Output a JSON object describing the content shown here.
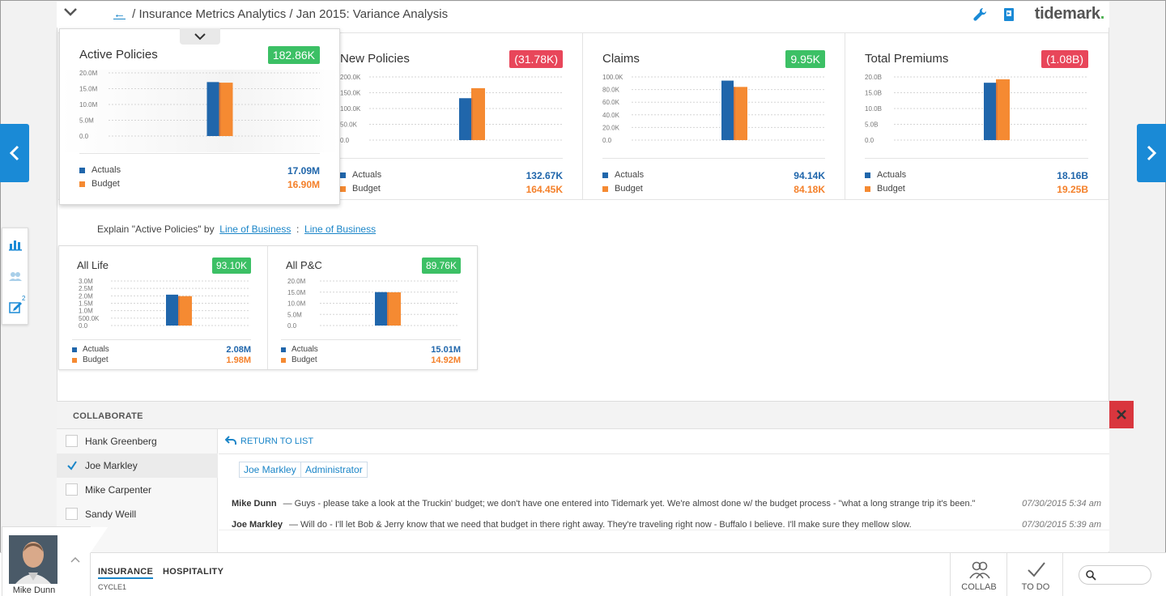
{
  "header": {
    "back_label": "←",
    "breadcrumb": "/ Insurance Metrics Analytics / Jan 2015:  Variance Analysis",
    "brand": "tidemark",
    "brand_dot": "."
  },
  "metric_cards": [
    {
      "title": "Active Policies",
      "variance": "182.86K",
      "variance_status": "positive",
      "ticks": [
        "20.0M",
        "15.0M",
        "10.0M",
        "5.0M",
        "0.0"
      ],
      "actuals_label": "Actuals",
      "actuals_value": "17.09M",
      "budget_label": "Budget",
      "budget_value": "16.90M"
    },
    {
      "title": "New Policies",
      "variance": "(31.78K)",
      "variance_status": "negative",
      "ticks": [
        "200.0K",
        "150.0K",
        "100.0K",
        "50.0K",
        "0.0"
      ],
      "actuals_label": "Actuals",
      "actuals_value": "132.67K",
      "budget_label": "Budget",
      "budget_value": "164.45K"
    },
    {
      "title": "Claims",
      "variance": "9.95K",
      "variance_status": "positive",
      "ticks": [
        "100.0K",
        "80.0K",
        "60.0K",
        "40.0K",
        "20.0K",
        "0.0"
      ],
      "actuals_label": "Actuals",
      "actuals_value": "94.14K",
      "budget_label": "Budget",
      "budget_value": "84.18K"
    },
    {
      "title": "Total Premiums",
      "variance": "(1.08B)",
      "variance_status": "negative",
      "ticks": [
        "20.0B",
        "15.0B",
        "10.0B",
        "5.0B",
        "0.0"
      ],
      "actuals_label": "Actuals",
      "actuals_value": "18.16B",
      "budget_label": "Budget",
      "budget_value": "19.25B"
    }
  ],
  "explain": {
    "prefix": "Explain \"Active Policies\" by",
    "link1": "Line of Business",
    "sep": ":",
    "link2": "Line of Business"
  },
  "sub_cards": [
    {
      "title": "All Life",
      "variance": "93.10K",
      "variance_status": "positive",
      "ticks": [
        "3.0M",
        "2.5M",
        "2.0M",
        "1.5M",
        "1.0M",
        "500.0K",
        "0.0"
      ],
      "actuals_label": "Actuals",
      "actuals_value": "2.08M",
      "budget_label": "Budget",
      "budget_value": "1.98M"
    },
    {
      "title": "All P&C",
      "variance": "89.76K",
      "variance_status": "positive",
      "ticks": [
        "20.0M",
        "15.0M",
        "10.0M",
        "5.0M",
        "0.0"
      ],
      "actuals_label": "Actuals",
      "actuals_value": "15.01M",
      "budget_label": "Budget",
      "budget_value": "14.92M"
    }
  ],
  "chart_data": [
    {
      "type": "bar",
      "title": "Active Policies",
      "categories": [
        "Actuals",
        "Budget"
      ],
      "values": [
        17.09,
        16.9
      ],
      "unit": "M",
      "ylim": [
        0,
        20
      ],
      "ylabel": ""
    },
    {
      "type": "bar",
      "title": "New Policies",
      "categories": [
        "Actuals",
        "Budget"
      ],
      "values": [
        132.67,
        164.45
      ],
      "unit": "K",
      "ylim": [
        0,
        200
      ],
      "ylabel": ""
    },
    {
      "type": "bar",
      "title": "Claims",
      "categories": [
        "Actuals",
        "Budget"
      ],
      "values": [
        94.14,
        84.18
      ],
      "unit": "K",
      "ylim": [
        0,
        100
      ],
      "ylabel": ""
    },
    {
      "type": "bar",
      "title": "Total Premiums",
      "categories": [
        "Actuals",
        "Budget"
      ],
      "values": [
        18.16,
        19.25
      ],
      "unit": "B",
      "ylim": [
        0,
        20
      ],
      "ylabel": ""
    },
    {
      "type": "bar",
      "title": "All Life",
      "categories": [
        "Actuals",
        "Budget"
      ],
      "values": [
        2.08,
        1.98
      ],
      "unit": "M",
      "ylim": [
        0,
        3
      ],
      "ylabel": ""
    },
    {
      "type": "bar",
      "title": "All P&C",
      "categories": [
        "Actuals",
        "Budget"
      ],
      "values": [
        15.01,
        14.92
      ],
      "unit": "M",
      "ylim": [
        0,
        20
      ],
      "ylabel": ""
    }
  ],
  "colors": {
    "actuals": "#2066ab",
    "budget": "#f58a32",
    "positive": "#3cc065",
    "negative": "#e8465a",
    "accent": "#1a8ad6"
  },
  "collaborate": {
    "title": "COLLABORATE",
    "people": [
      {
        "name": "Hank Greenberg",
        "checked": false
      },
      {
        "name": "Joe Markley",
        "checked": true
      },
      {
        "name": "Mike Carpenter",
        "checked": false
      },
      {
        "name": "Sandy Weill",
        "checked": false
      }
    ],
    "return_label": "RETURN TO LIST",
    "tags": [
      "Joe Markley",
      "Administrator"
    ],
    "messages": [
      {
        "author": "Mike Dunn",
        "text": "— Guys - please take a look at the Truckin' budget; we don't have one entered into Tidemark yet. We're almost done w/ the budget process - \"what a long strange trip it's been.\"",
        "time": "07/30/2015 5:34 am"
      },
      {
        "author": "Joe Markley",
        "text": "— Will do - I'll let Bob & Jerry know that we need that budget in there right away. They're traveling right now - Buffalo I believe. I'll make sure they mellow slow.",
        "time": "07/30/2015 5:39 am"
      }
    ]
  },
  "footer": {
    "user_name": "Mike Dunn",
    "tabs": [
      "INSURANCE",
      "HOSPITALITY"
    ],
    "active_tab": "INSURANCE",
    "cycle": "CYCLE1",
    "collab_label": "COLLAB",
    "todo_label": "TO DO",
    "search_value": ""
  },
  "icons": [
    "chevron-down-icon",
    "back-arrow-icon",
    "wrench-icon",
    "book-icon",
    "chevron-left-icon",
    "chevron-right-icon",
    "bar-chart-icon",
    "people-icon",
    "edit-icon",
    "close-icon",
    "return-arrow-icon",
    "checkmark-icon",
    "chevron-up-icon",
    "collab-icon",
    "todo-check-icon",
    "search-icon"
  ],
  "rail": {
    "edit_badge": "2"
  }
}
